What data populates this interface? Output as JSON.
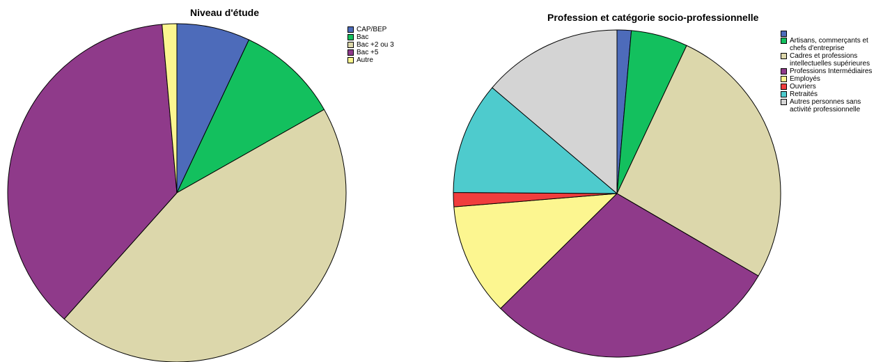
{
  "chart_data": [
    {
      "type": "pie",
      "title": "Niveau d'étude",
      "legend_position": "top-right",
      "start_angle_deg": 0,
      "direction": "clockwise",
      "slices": [
        {
          "label": "CAP/BEP",
          "value": 7.0,
          "color": "#4d6bba"
        },
        {
          "label": "Bac",
          "value": 9.8,
          "color": "#13c05e"
        },
        {
          "label": "Bac +2 ou 3",
          "value": 44.8,
          "color": "#dcd7ab"
        },
        {
          "label": "Bac +5",
          "value": 37.0,
          "color": "#8f3a8a"
        },
        {
          "label": "Autre",
          "value": 1.4,
          "color": "#fcf690"
        }
      ]
    },
    {
      "type": "pie",
      "title": "Profession et catégorie socio-professionnelle",
      "legend_position": "top-right",
      "start_angle_deg": 0,
      "direction": "clockwise",
      "slices": [
        {
          "label": "",
          "value": 1.4,
          "color": "#4d6bba"
        },
        {
          "label": "Artisans, commerçants et\nchefs d'entreprise",
          "value": 5.6,
          "color": "#13c05e"
        },
        {
          "label": "Cadres et professions\nintellectuelles supérieures",
          "value": 26.4,
          "color": "#dcd7ab"
        },
        {
          "label": "Professions Intermédiaires",
          "value": 29.2,
          "color": "#8f3a8a"
        },
        {
          "label": "Employés",
          "value": 11.1,
          "color": "#fcf690"
        },
        {
          "label": "Ouvriers",
          "value": 1.4,
          "color": "#f03d3d"
        },
        {
          "label": "Retraités",
          "value": 11.1,
          "color": "#4ecbcd"
        },
        {
          "label": "Autres personnes sans\nactivité professionnelle",
          "value": 13.8,
          "color": "#d4d4d4"
        }
      ]
    }
  ]
}
